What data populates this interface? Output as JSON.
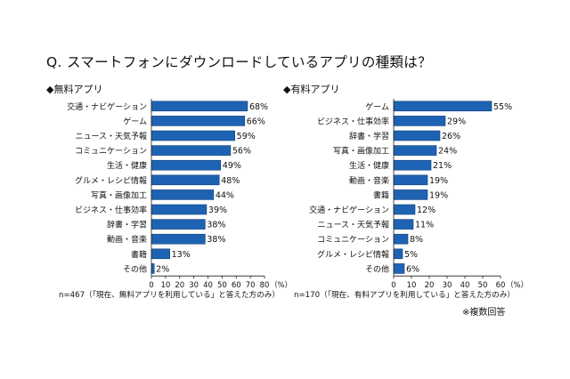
{
  "question": "Q. スマートフォンにダウンロードしているアプリの種類は？",
  "colors": {
    "bar": "#1e63b3",
    "bar_edge": "#123f78",
    "axis": "#222222",
    "text": "#111111"
  },
  "chart_data": [
    {
      "type": "bar",
      "orientation": "horizontal",
      "title": "◆無料アプリ",
      "categories": [
        "交通・ナビゲーション",
        "ゲーム",
        "ニュース・天気予報",
        "コミュニケーション",
        "生活・健康",
        "グルメ・レシピ情報",
        "写真・画像加工",
        "ビジネス・仕事効率",
        "辞書・学習",
        "動画・音楽",
        "書籍",
        "その他"
      ],
      "values": [
        68,
        66,
        59,
        56,
        49,
        48,
        44,
        39,
        38,
        38,
        13,
        2
      ],
      "value_labels": [
        "68%",
        "66%",
        "59%",
        "56%",
        "49%",
        "48%",
        "44%",
        "39%",
        "38%",
        "38%",
        "13%",
        "2%"
      ],
      "xlim": [
        0,
        80
      ],
      "xticks": [
        "0",
        "10",
        "20",
        "30",
        "40",
        "50",
        "60",
        "70",
        "80"
      ],
      "xlabel": "（%）",
      "note": "n=467（「現在、無料アプリを利用している」と答えた方のみ）"
    },
    {
      "type": "bar",
      "orientation": "horizontal",
      "title": "◆有料アプリ",
      "categories": [
        "ゲーム",
        "ビジネス・仕事効率",
        "辞書・学習",
        "写真・画像加工",
        "生活・健康",
        "動画・音楽",
        "書籍",
        "交通・ナビゲーション",
        "ニュース・天気予報",
        "コミュニケーション",
        "グルメ・レシピ情報",
        "その他"
      ],
      "values": [
        55,
        29,
        26,
        24,
        21,
        19,
        19,
        12,
        11,
        8,
        5,
        6
      ],
      "value_labels": [
        "55%",
        "29%",
        "26%",
        "24%",
        "21%",
        "19%",
        "19%",
        "12%",
        "11%",
        "8%",
        "5%",
        "6%"
      ],
      "xlim": [
        0,
        60
      ],
      "xticks": [
        "0",
        "10",
        "20",
        "30",
        "40",
        "50",
        "60"
      ],
      "xlabel": "（%）",
      "note": "n=170（「現在、有料アプリを利用している」と答えた方のみ）"
    }
  ],
  "footnote": "※複数回答"
}
